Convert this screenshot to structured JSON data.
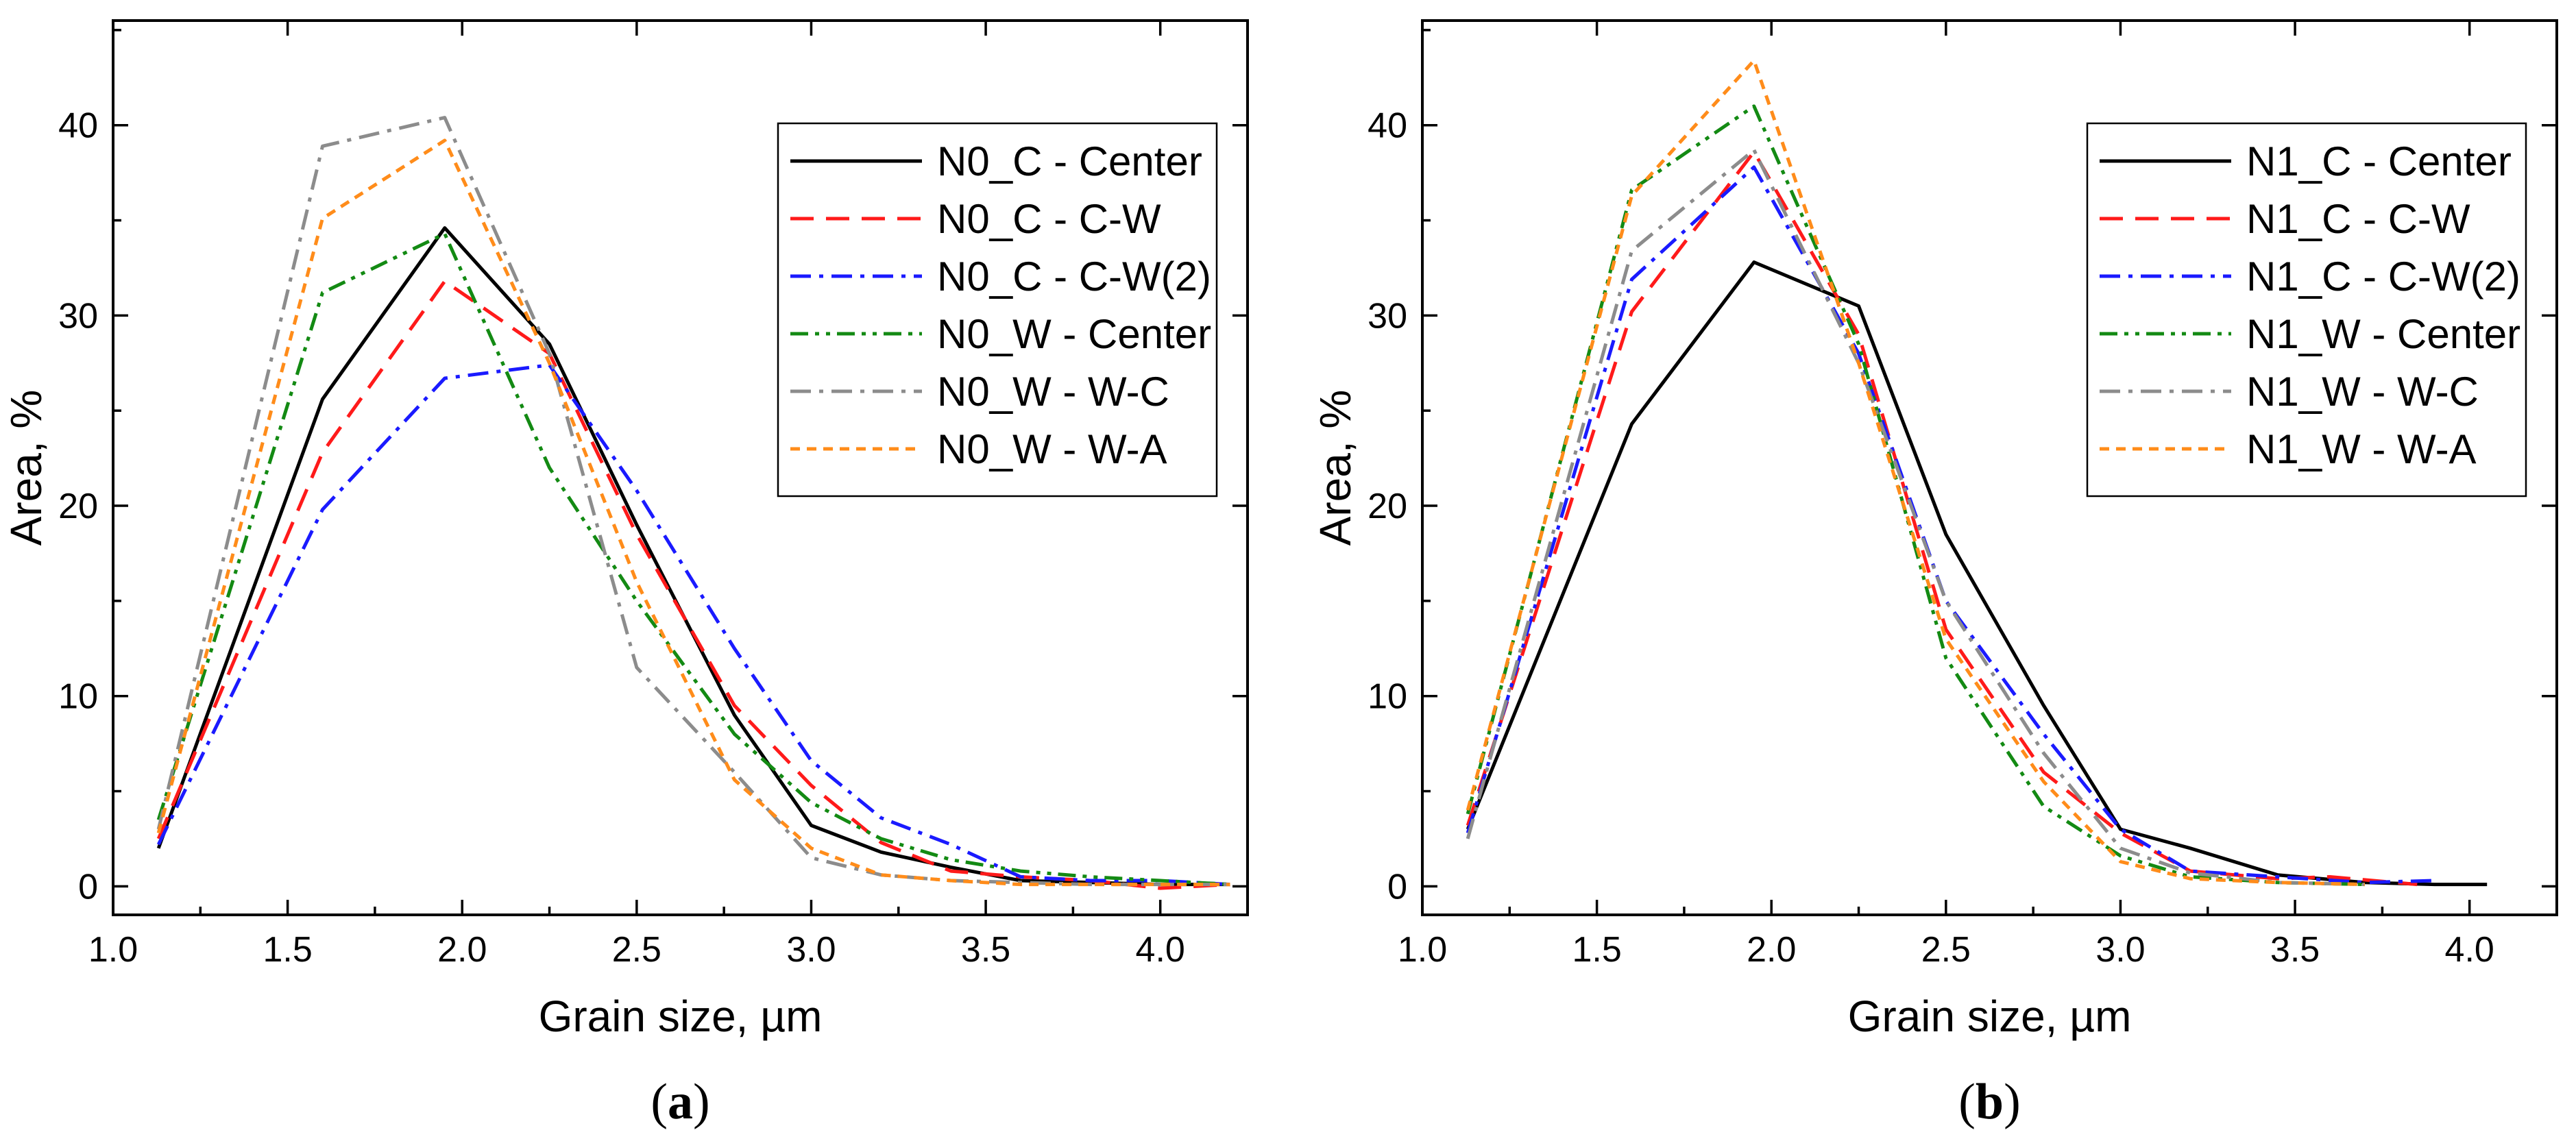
{
  "colors": {
    "black": "#000000",
    "red": "#ff1a1a",
    "blue": "#1a1aff",
    "green": "#138a13",
    "gray": "#8c8c8c",
    "orange": "#ff8c1a"
  },
  "chart_data": [
    {
      "type": "line",
      "panel_label": "(a)",
      "panel_letter": "a",
      "xlabel": "Grain size, µm",
      "ylabel": "Area, %",
      "xlim": [
        1.0,
        4.25
      ],
      "ylim": [
        -1.5,
        45.5
      ],
      "xticks": [
        1.0,
        1.5,
        2.0,
        2.5,
        3.0,
        3.5,
        4.0
      ],
      "xtick_labels": [
        "1.0",
        "1.5",
        "2.0",
        "2.5",
        "3.0",
        "3.5",
        "4.0"
      ],
      "yticks": [
        0,
        10,
        20,
        30,
        40
      ],
      "ytick_labels": [
        "0",
        "10",
        "20",
        "30",
        "40"
      ],
      "grid": false,
      "legend_position": "top-right",
      "series": [
        {
          "name": "N0_C - Center",
          "color": "black",
          "dash": "solid",
          "x": [
            1.13,
            1.6,
            1.95,
            2.25,
            2.5,
            2.78,
            3.0,
            3.2,
            3.4,
            3.6,
            3.8,
            4.0,
            4.2
          ],
          "y": [
            2.0,
            25.6,
            34.6,
            28.5,
            19.0,
            9.0,
            3.2,
            1.8,
            1.0,
            0.3,
            0.2,
            0.1,
            0.1
          ]
        },
        {
          "name": "N0_C - C-W",
          "color": "red",
          "dash": "dash",
          "x": [
            1.13,
            1.6,
            1.95,
            2.25,
            2.5,
            2.78,
            3.0,
            3.2,
            3.4,
            3.6,
            3.8,
            4.0,
            4.2
          ],
          "y": [
            2.5,
            22.8,
            31.8,
            28.0,
            18.5,
            9.5,
            5.3,
            2.3,
            0.8,
            0.5,
            0.3,
            -0.1,
            0.1
          ]
        },
        {
          "name": "N0_C - C-W(2)",
          "color": "blue",
          "dash": "dashdot",
          "x": [
            1.13,
            1.6,
            1.95,
            2.25,
            2.5,
            2.78,
            3.0,
            3.2,
            3.4,
            3.6,
            3.8,
            4.0,
            4.2
          ],
          "y": [
            2.2,
            19.8,
            26.7,
            27.4,
            20.8,
            12.5,
            6.6,
            3.6,
            2.2,
            0.5,
            0.3,
            0.3,
            0.1
          ]
        },
        {
          "name": "N0_W - Center",
          "color": "green",
          "dash": "dashdotdot",
          "x": [
            1.13,
            1.6,
            1.95,
            2.25,
            2.5,
            2.78,
            3.0,
            3.2,
            3.4,
            3.6,
            3.8,
            4.0,
            4.2
          ],
          "y": [
            3.5,
            31.2,
            34.3,
            22.0,
            15.0,
            8.0,
            4.4,
            2.5,
            1.4,
            0.8,
            0.5,
            0.3,
            0.1
          ]
        },
        {
          "name": "N0_W - W-C",
          "color": "gray",
          "dash": "dashdot",
          "x": [
            1.13,
            1.6,
            1.95,
            2.25,
            2.5,
            2.78,
            3.0,
            3.2,
            3.4,
            3.6,
            3.8,
            4.0,
            4.2
          ],
          "y": [
            3.0,
            38.9,
            40.4,
            28.0,
            11.5,
            6.0,
            1.5,
            0.6,
            0.3,
            0.2,
            0.1,
            0.1,
            0.1
          ]
        },
        {
          "name": "N0_W - W-A",
          "color": "orange",
          "dash": "shortdash",
          "x": [
            1.13,
            1.6,
            1.95,
            2.25,
            2.5,
            2.78,
            3.0,
            3.2,
            3.4,
            3.6,
            3.8,
            4.0,
            4.2
          ],
          "y": [
            2.8,
            35.1,
            39.2,
            27.5,
            16.0,
            5.6,
            2.0,
            0.6,
            0.3,
            0.1,
            0.1,
            0.1,
            0.1
          ]
        }
      ]
    },
    {
      "type": "line",
      "panel_label": "(b)",
      "panel_letter": "b",
      "xlabel": "Grain size, µm",
      "ylabel": "Area, %",
      "xlim": [
        1.0,
        4.25
      ],
      "ylim": [
        -1.5,
        45.5
      ],
      "xticks": [
        1.0,
        1.5,
        2.0,
        2.5,
        3.0,
        3.5,
        4.0
      ],
      "xtick_labels": [
        "1.0",
        "1.5",
        "2.0",
        "2.5",
        "3.0",
        "3.5",
        "4.0"
      ],
      "yticks": [
        0,
        10,
        20,
        30,
        40
      ],
      "ytick_labels": [
        "0",
        "10",
        "20",
        "30",
        "40"
      ],
      "grid": false,
      "legend_position": "top-right",
      "series": [
        {
          "name": "N1_C - Center",
          "color": "black",
          "dash": "solid",
          "x": [
            1.13,
            1.6,
            1.95,
            2.25,
            2.5,
            2.78,
            3.0,
            3.2,
            3.45,
            3.7,
            3.9,
            4.05
          ],
          "y": [
            3.0,
            24.3,
            32.8,
            30.5,
            18.5,
            9.5,
            3.0,
            2.0,
            0.6,
            0.2,
            0.1,
            0.1
          ]
        },
        {
          "name": "N1_C - C-W",
          "color": "red",
          "dash": "dash",
          "x": [
            1.13,
            1.6,
            1.95,
            2.25,
            2.5,
            2.78,
            3.0,
            3.2,
            3.45,
            3.6,
            3.85
          ],
          "y": [
            3.2,
            30.2,
            38.6,
            29.0,
            13.5,
            6.0,
            2.8,
            0.8,
            0.4,
            0.5,
            0.1
          ]
        },
        {
          "name": "N1_C - C-W(2)",
          "color": "blue",
          "dash": "dashdot",
          "x": [
            1.13,
            1.6,
            1.95,
            2.25,
            2.5,
            2.78,
            3.0,
            3.2,
            3.45,
            3.7,
            3.9
          ],
          "y": [
            2.8,
            31.9,
            37.8,
            28.0,
            15.0,
            8.0,
            3.0,
            0.8,
            0.5,
            0.2,
            0.3
          ]
        },
        {
          "name": "N1_W - Center",
          "color": "green",
          "dash": "dashdotdot",
          "x": [
            1.13,
            1.6,
            1.95,
            2.25,
            2.5,
            2.78,
            3.0,
            3.2,
            3.45,
            3.7
          ],
          "y": [
            3.8,
            36.6,
            41.0,
            28.5,
            12.0,
            4.2,
            1.6,
            0.5,
            0.2,
            0.1
          ]
        },
        {
          "name": "N1_W - W-C",
          "color": "gray",
          "dash": "dashdot",
          "x": [
            1.13,
            1.6,
            1.95,
            2.25,
            2.5,
            2.78,
            3.0,
            3.2,
            3.45,
            3.7
          ],
          "y": [
            2.5,
            33.4,
            38.7,
            27.5,
            15.0,
            7.0,
            2.0,
            0.7,
            0.2,
            0.1
          ]
        },
        {
          "name": "N1_W - W-A",
          "color": "orange",
          "dash": "shortdash",
          "x": [
            1.13,
            1.6,
            1.95,
            2.25,
            2.5,
            2.78,
            3.0,
            3.2,
            3.45,
            3.7
          ],
          "y": [
            4.0,
            36.3,
            43.4,
            27.5,
            13.0,
            5.5,
            1.3,
            0.4,
            0.2,
            0.1
          ]
        }
      ]
    }
  ]
}
